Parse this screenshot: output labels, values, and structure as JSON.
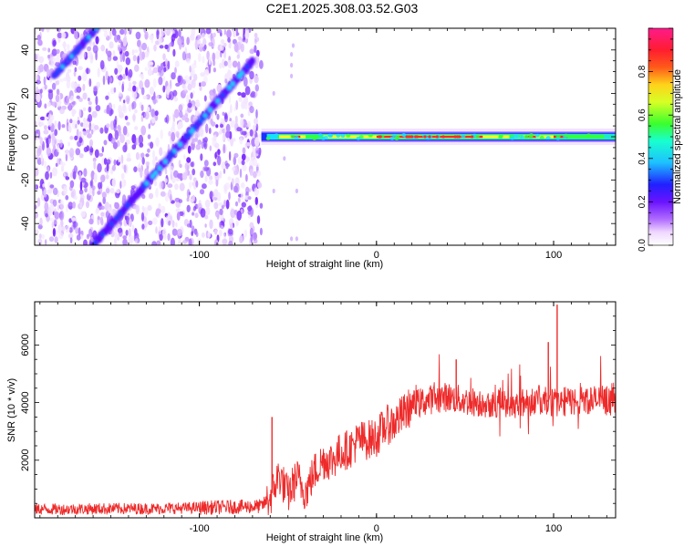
{
  "figure": {
    "title": "C2E1.2025.308.03.52.G03"
  },
  "chart_data": [
    {
      "type": "heatmap",
      "title": "C2E1.2025.308.03.52.G03",
      "xlabel": "Height of straight line (km)",
      "ylabel": "Frequency (Hz)",
      "xlim": [
        -193,
        135
      ],
      "ylim": [
        -50,
        50
      ],
      "xticks": [
        -100,
        0,
        100
      ],
      "yticks": [
        -40,
        -20,
        0,
        20,
        40
      ],
      "colorbar": {
        "label": "Normalized spectral amplitude",
        "range": [
          0,
          1
        ],
        "ticks": [
          0,
          0.2,
          0.4,
          0.6,
          0.8
        ],
        "colormap": "rainbow (white-purple-blue-cyan-green-yellow-red-pink)"
      },
      "features": {
        "noise_region_x": [
          -193,
          -65
        ],
        "drifting_line": {
          "x": [
            -160,
            -70
          ],
          "y": [
            -50,
            35
          ],
          "amplitude": 0.2
        },
        "drifting_line_upper": {
          "x": [
            -182,
            -158
          ],
          "y": [
            28,
            50
          ],
          "amplitude": 0.15
        },
        "carrier_line": {
          "x": [
            -65,
            135
          ],
          "y": 0,
          "peak_amplitude": 0.85
        }
      },
      "colors": {
        "purple": "#7b2cff",
        "blue": "#1a3cff",
        "cyan": "#17e0ff",
        "green": "#35ff3a",
        "yellow": "#f4ff2b",
        "red": "#ff2a2a"
      }
    },
    {
      "type": "line",
      "xlabel": "Height of straight line (km)",
      "ylabel": "SNR (10 * v/v)",
      "xlim": [
        -193,
        135
      ],
      "ylim": [
        0,
        7500
      ],
      "xticks": [
        -100,
        0,
        100
      ],
      "yticks": [
        2000,
        4000,
        6000
      ],
      "series": [
        {
          "name": "SNR",
          "color": "#ee2a2a",
          "x": [
            -193,
            -175,
            -150,
            -125,
            -100,
            -80,
            -65,
            -60,
            -55,
            -50,
            -45,
            -40,
            -35,
            -30,
            -25,
            -20,
            -15,
            -10,
            -5,
            0,
            5,
            10,
            15,
            20,
            25,
            30,
            40,
            50,
            60,
            70,
            80,
            90,
            100,
            110,
            120,
            135
          ],
          "values": [
            300,
            300,
            320,
            320,
            350,
            380,
            400,
            700,
            1500,
            800,
            1400,
            900,
            1600,
            2000,
            2000,
            2300,
            2400,
            2700,
            2700,
            2800,
            3200,
            3300,
            3600,
            3900,
            4000,
            4100,
            4200,
            4050,
            4000,
            4000,
            3950,
            4100,
            4000,
            4050,
            4100,
            4050
          ],
          "spikes": [
            {
              "x": -59,
              "value": 3500
            },
            {
              "x": 45,
              "value": 5500
            },
            {
              "x": 97,
              "value": 6100
            },
            {
              "x": 102,
              "value": 7400
            }
          ]
        }
      ]
    }
  ]
}
